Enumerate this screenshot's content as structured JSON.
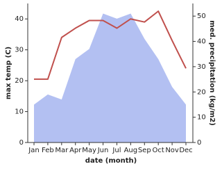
{
  "chart_data": {
    "type": "line-area",
    "x_label": "date (month)",
    "y_label": "max temp (C)",
    "y2_label": "med. precipitation (kg/m2)",
    "categories": [
      "Jan",
      "Feb",
      "Mar",
      "Apr",
      "May",
      "Jun",
      "Jul",
      "Aug",
      "Sep",
      "Oct",
      "Nov",
      "Dec"
    ],
    "series": [
      {
        "name": "max temp",
        "color": "#c0504d",
        "kind": "line",
        "values": [
          20.5,
          20.5,
          34,
          37,
          39.5,
          39.5,
          37,
          40,
          39,
          42.5,
          33,
          24
        ]
      },
      {
        "name": "med. precipitation",
        "color": "#b3c0f2",
        "kind": "area",
        "axis": "y2",
        "values": [
          15,
          19,
          17,
          33,
          37,
          51,
          49,
          51,
          41,
          33,
          22,
          15
        ]
      }
    ],
    "ylim": [
      0,
      45
    ],
    "yticks": [
      0,
      10,
      20,
      30,
      40
    ],
    "y2lim": [
      0,
      55
    ],
    "y2ticks": [
      0,
      10,
      20,
      30,
      40,
      50
    ]
  }
}
